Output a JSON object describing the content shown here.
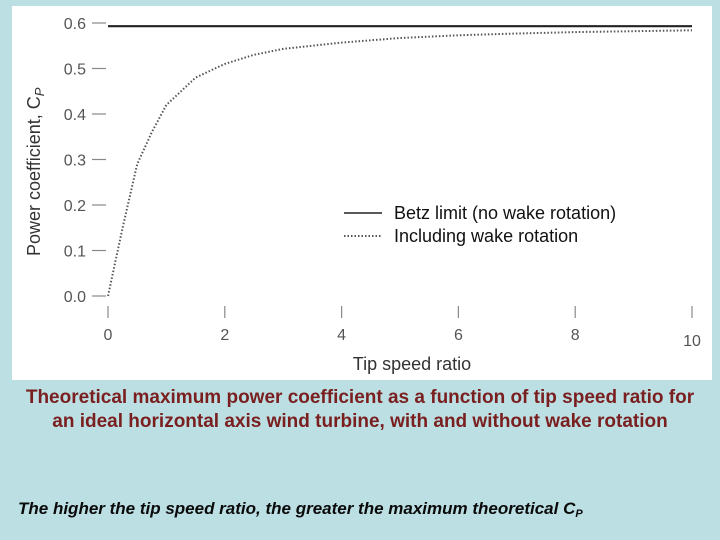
{
  "caption": "Theoretical maximum power coefficient as a function of tip speed ratio for an ideal horizontal axis wind turbine, with and without wake rotation",
  "subnote": {
    "text": "The higher the tip speed ratio, the greater the maximum theoretical C",
    "subscript": "P"
  },
  "colors": {
    "background": "#bcdfe3",
    "caption": "#7a1f1f",
    "betz_line": "#222222",
    "wake_line": "#555555"
  },
  "chart_data": {
    "type": "line",
    "title": "",
    "xlabel": "Tip speed ratio",
    "ylabel": "Power coefficient, C",
    "ylabel_subscript": "P",
    "xlim": [
      0,
      10
    ],
    "ylim": [
      0,
      0.6
    ],
    "x_ticks": [
      "0",
      "2",
      "4",
      "6",
      "8",
      "10"
    ],
    "y_ticks": [
      "0.0",
      "0.1",
      "0.2",
      "0.3",
      "0.4",
      "0.5",
      "0.6"
    ],
    "grid": false,
    "legend_position": "center-right",
    "series": [
      {
        "name": "Betz limit (no wake rotation)",
        "style": "solid",
        "x": [
          0,
          10
        ],
        "y": [
          0.593,
          0.593
        ]
      },
      {
        "name": "Including wake rotation",
        "style": "dotted",
        "x": [
          0,
          0.25,
          0.5,
          0.75,
          1.0,
          1.25,
          1.5,
          2.0,
          2.5,
          3.0,
          4.0,
          5.0,
          6.0,
          7.0,
          8.0,
          9.0,
          10.0
        ],
        "y": [
          0.0,
          0.15,
          0.29,
          0.36,
          0.42,
          0.45,
          0.48,
          0.51,
          0.53,
          0.543,
          0.557,
          0.567,
          0.573,
          0.577,
          0.58,
          0.582,
          0.584
        ]
      }
    ]
  }
}
